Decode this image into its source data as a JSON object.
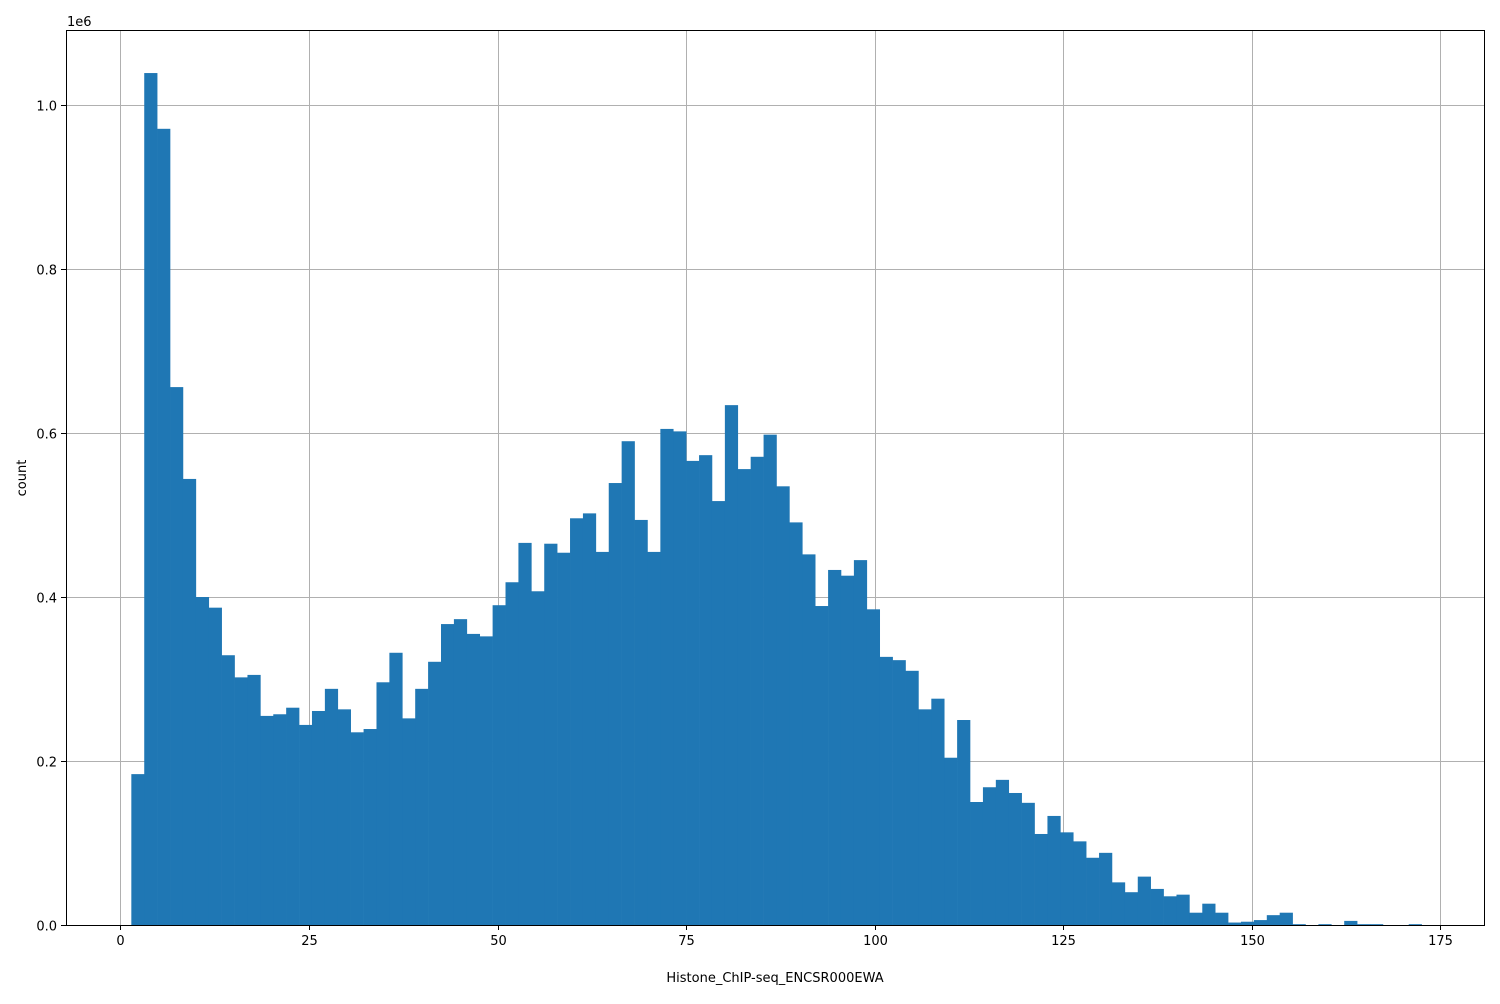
{
  "chart_data": {
    "type": "bar",
    "subtype": "histogram",
    "title": "",
    "xlabel": "Histone_ChIP-seq_ENCSR000EWA",
    "ylabel": "count",
    "y_offset_label": "1e6",
    "xlim": [
      -7.2,
      180.9
    ],
    "ylim": [
      0,
      1091500
    ],
    "grid": true,
    "bar_color": "#1f77b4",
    "x_ticks": [
      0,
      25,
      50,
      75,
      100,
      125,
      150,
      175
    ],
    "x_tick_labels": [
      "0",
      "25",
      "50",
      "75",
      "100",
      "125",
      "150",
      "175"
    ],
    "y_ticks": [
      0,
      200000,
      400000,
      600000,
      800000,
      1000000
    ],
    "y_tick_labels": [
      "0.0",
      "0.2",
      "0.4",
      "0.6",
      "0.8",
      "1.0"
    ],
    "bin_start": 1.46,
    "bin_end": 172.5,
    "values": [
      184000,
      1039000,
      971000,
      656000,
      544000,
      400000,
      387000,
      329000,
      302000,
      305000,
      255000,
      257000,
      265000,
      244000,
      261000,
      288000,
      263000,
      235000,
      239000,
      296000,
      332000,
      252000,
      288000,
      321000,
      367000,
      373000,
      355000,
      352000,
      390000,
      418000,
      466000,
      407000,
      465000,
      454000,
      496000,
      502000,
      455000,
      539000,
      590000,
      494000,
      455000,
      605000,
      602000,
      566000,
      573000,
      517000,
      634000,
      556000,
      571000,
      598000,
      535000,
      491000,
      452000,
      389000,
      433000,
      426000,
      445000,
      385000,
      327000,
      323000,
      310000,
      263000,
      276000,
      204000,
      250000,
      150000,
      168000,
      177000,
      161000,
      149000,
      111000,
      133000,
      113000,
      102000,
      82000,
      88000,
      52000,
      40000,
      59000,
      44000,
      35000,
      37000,
      15000,
      26000,
      15000,
      3000,
      4000,
      6000,
      12000,
      15000,
      1000,
      0,
      1000,
      0,
      5000,
      1000,
      1000,
      0,
      0,
      1000
    ]
  }
}
